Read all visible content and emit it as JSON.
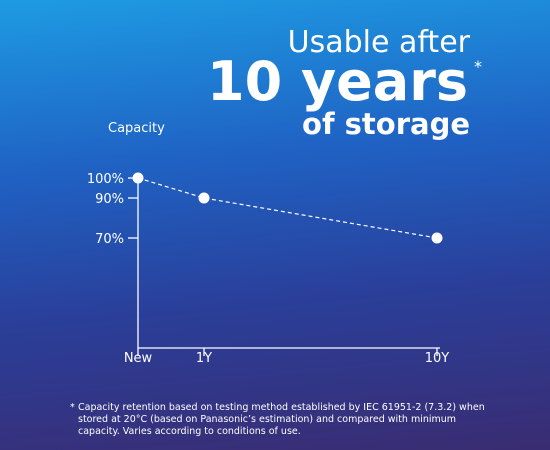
{
  "chart_data": {
    "type": "line",
    "title": "10 years",
    "title_prefix": "Usable after",
    "title_suffix": "of storage",
    "title_marker": "*",
    "ylabel": "Capacity",
    "categories": [
      "New",
      "1Y",
      "10Y"
    ],
    "values": [
      100,
      90,
      70
    ],
    "color": "#ffffff",
    "ylim": [
      15,
      100
    ],
    "yticks": [
      {
        "value": 100,
        "label": "100%"
      },
      {
        "value": 90,
        "label": "90%"
      },
      {
        "value": 70,
        "label": "70%"
      }
    ],
    "footnote_marker": "*",
    "footnote": "Capacity retention based on testing method established by IEC 61951-2 (7.3.2) when stored at 20°C (based on Panasonic’s estimation) and compared with minimum capacity. Varies according to conditions of use."
  }
}
